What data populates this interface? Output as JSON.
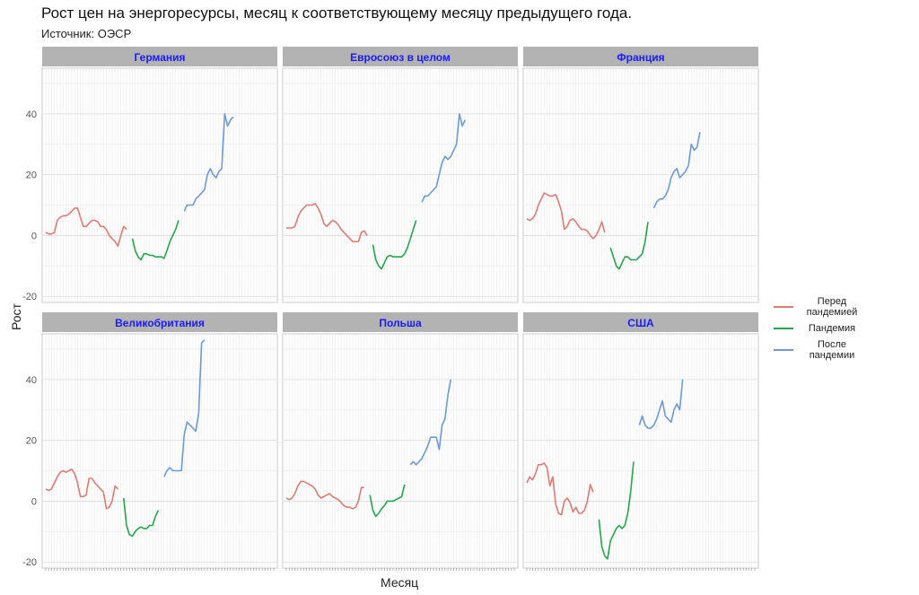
{
  "title": "Рост цен на энергоресурсы, месяц к соответствующему месяцу предыдущего года.",
  "subtitle": "Источник: ОЭСР",
  "chart_data": {
    "type": "line",
    "xlabel": "Месяц",
    "ylabel": "Рост",
    "ylim": [
      -22,
      55
    ],
    "yticks": [
      -20,
      0,
      20,
      40
    ],
    "grid": true,
    "legend_position": "right",
    "series_names": [
      "Перед пандемией",
      "Пандемия",
      "После пандемии"
    ],
    "colors": {
      "before": "#E07B72",
      "pandemic": "#21A84A",
      "after": "#6B9AD8",
      "strip": "#B3B3B3",
      "strip_text": "#1a1aff"
    },
    "panels": [
      {
        "name": "Германия",
        "before": [
          1,
          0.5,
          0.5,
          1,
          5,
          6,
          6.5,
          6.5,
          7,
          8,
          9,
          9,
          6,
          3,
          3,
          4,
          5,
          5,
          4.5,
          3,
          3,
          2,
          0,
          -1,
          -2,
          -3.5,
          0,
          3,
          2
        ],
        "pandemic": [
          -1,
          -5,
          -7,
          -8,
          -6,
          -6,
          -6.5,
          -6.5,
          -7,
          -7,
          -7,
          -7.5,
          -5,
          -2,
          0,
          2,
          5
        ],
        "after": [
          8,
          10,
          10,
          10,
          12,
          13,
          14,
          15,
          20,
          22,
          20,
          19,
          21,
          22,
          40,
          36,
          38,
          39
        ]
      },
      {
        "name": "Евросоюз в целом",
        "before": [
          2.5,
          2.5,
          2.5,
          3,
          6,
          8,
          9,
          10,
          10,
          10,
          10.5,
          9,
          7,
          4,
          3,
          4,
          5,
          4.5,
          3.5,
          2,
          1,
          0,
          -1,
          -2,
          -2,
          -2,
          1,
          1.5,
          0
        ],
        "pandemic": [
          -3,
          -8,
          -10,
          -11,
          -9,
          -7,
          -6.5,
          -7,
          -7,
          -7,
          -7,
          -6,
          -4,
          -1,
          2,
          5
        ],
        "after": [
          11,
          13,
          13,
          14,
          15,
          16,
          20,
          24,
          26,
          25,
          26,
          28,
          30,
          40,
          36,
          38
        ]
      },
      {
        "name": "Франция",
        "before": [
          5.5,
          5,
          5.5,
          7,
          10,
          12,
          14,
          13.5,
          13,
          13,
          13.5,
          11,
          8,
          2,
          3,
          5,
          5.5,
          4.5,
          3,
          2,
          2,
          1.5,
          0,
          -1,
          0,
          2,
          4.5,
          1
        ],
        "pandemic": [
          -4,
          -7,
          -10,
          -11,
          -9,
          -7,
          -7,
          -8,
          -8,
          -8,
          -7,
          -6,
          -2,
          4.5
        ],
        "after": [
          9,
          11,
          12,
          12,
          13,
          15,
          19,
          21,
          22,
          19,
          20,
          21,
          23,
          30,
          28,
          29,
          34
        ]
      },
      {
        "name": "Великобритания",
        "before": [
          4,
          3.5,
          4,
          6,
          8,
          9.5,
          10,
          9.5,
          10,
          10.5,
          9,
          6,
          1.5,
          1.5,
          2,
          7.5,
          7.5,
          6,
          5,
          4,
          3,
          -2.5,
          -2,
          0,
          5,
          4
        ],
        "pandemic": [
          1,
          -8,
          -11,
          -11.5,
          -10,
          -9,
          -8.5,
          -9,
          -9,
          -8,
          -8,
          -5,
          -3
        ],
        "after": [
          8,
          10,
          11,
          10,
          10,
          10,
          10,
          22,
          26,
          25,
          24,
          23,
          29,
          52,
          53
        ]
      },
      {
        "name": "Польша",
        "before": [
          1,
          0.5,
          1,
          2.5,
          5,
          6.5,
          6.5,
          6,
          5.5,
          5,
          4,
          2,
          1,
          1.5,
          2,
          2.5,
          1.5,
          1,
          0.5,
          -0.5,
          -1.5,
          -2,
          -2,
          -2.5,
          -2,
          0,
          4.5,
          4.5
        ],
        "pandemic": [
          2,
          -3,
          -5,
          -4,
          -2.5,
          -1.5,
          0,
          0,
          0,
          0.5,
          1,
          1.5,
          5.5
        ],
        "after": [
          12,
          13,
          12,
          13,
          14,
          16,
          18,
          21,
          21,
          21,
          17,
          25,
          27,
          35,
          40
        ]
      },
      {
        "name": "США",
        "before": [
          6,
          8,
          7,
          9,
          12,
          12,
          12.5,
          11,
          5,
          8,
          -1,
          -4,
          -4.5,
          0,
          1,
          -0.5,
          -3.5,
          -2,
          -4,
          -4,
          -3,
          0,
          5.5,
          3
        ],
        "pandemic": [
          -6,
          -15,
          -18,
          -19,
          -13,
          -11,
          -9,
          -8,
          -9,
          -8,
          -4,
          3,
          13
        ],
        "after": [
          25,
          28,
          25,
          24,
          24,
          25,
          27,
          30,
          33,
          28,
          27,
          26,
          30,
          32,
          30,
          40
        ]
      }
    ]
  }
}
